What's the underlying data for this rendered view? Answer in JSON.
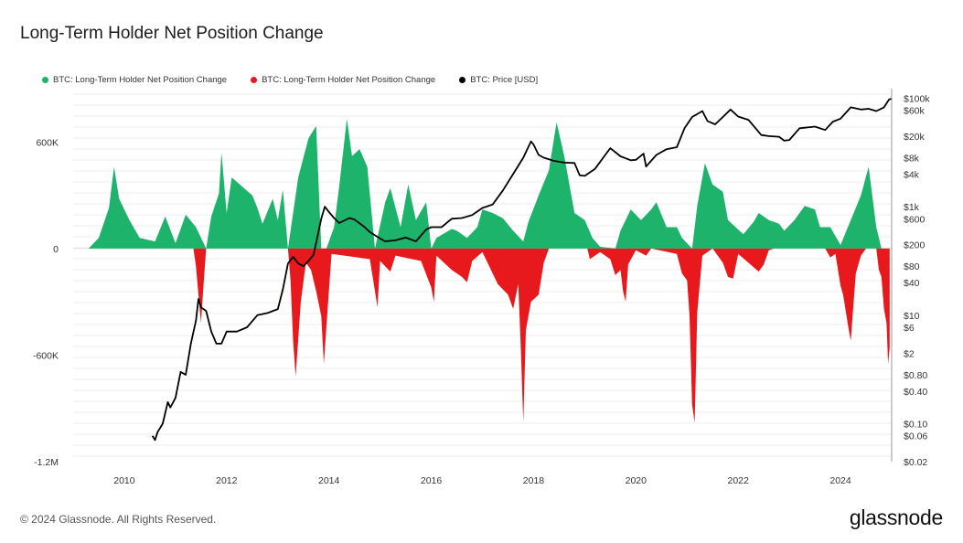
{
  "page": {
    "title": "Long-Term Holder Net Position Change",
    "footer": "© 2024 Glassnode. All Rights Reserved.",
    "brand": "glassnode"
  },
  "legend": [
    {
      "label": "BTC: Long-Term Holder Net Position Change",
      "color": "#1db36a"
    },
    {
      "label": "BTC: Long-Term Holder Net Position Change",
      "color": "#e8191c"
    },
    {
      "label": "BTC: Price [USD]",
      "color": "#000000"
    }
  ],
  "chart_data": {
    "type": "area",
    "title": "Long-Term Holder Net Position Change",
    "x_ticks": [
      "2010",
      "2012",
      "2014",
      "2016",
      "2018",
      "2020",
      "2022",
      "2024"
    ],
    "y_left_ticks": [
      "600K",
      "0",
      "-600K",
      "-1.2M"
    ],
    "y_right_ticks": [
      "$100k",
      "$60k",
      "$20k",
      "$8k",
      "$4k",
      "$1k",
      "$600",
      "$200",
      "$80",
      "$40",
      "$10",
      "$6",
      "$2",
      "$0.80",
      "$0.40",
      "$0.10",
      "$0.06",
      "$0.02"
    ],
    "y_left_range": [
      -1200000,
      900000
    ],
    "y_right_range_log": [
      0.02,
      150000
    ],
    "x_range": [
      2009.0,
      2025.0
    ],
    "series": [
      {
        "name": "BTC: Long-Term Holder Net Position Change",
        "color": "#1db36a",
        "points": [
          [
            2009.3,
            0
          ],
          [
            2009.5,
            60000
          ],
          [
            2009.7,
            230000
          ],
          [
            2009.8,
            460000
          ],
          [
            2009.9,
            280000
          ],
          [
            2010.1,
            160000
          ],
          [
            2010.3,
            60000
          ],
          [
            2010.6,
            40000
          ],
          [
            2010.8,
            180000
          ],
          [
            2011.0,
            30000
          ],
          [
            2011.2,
            190000
          ],
          [
            2011.4,
            120000
          ],
          [
            2011.6,
            0
          ],
          [
            2011.7,
            180000
          ],
          [
            2011.85,
            310000
          ],
          [
            2011.9,
            540000
          ],
          [
            2012.0,
            200000
          ],
          [
            2012.1,
            400000
          ],
          [
            2012.3,
            350000
          ],
          [
            2012.5,
            300000
          ],
          [
            2012.6,
            230000
          ],
          [
            2012.7,
            140000
          ],
          [
            2012.9,
            280000
          ],
          [
            2013.0,
            160000
          ],
          [
            2013.1,
            330000
          ],
          [
            2013.2,
            0
          ],
          [
            2013.3,
            200000
          ],
          [
            2013.4,
            400000
          ],
          [
            2013.6,
            620000
          ],
          [
            2013.75,
            690000
          ],
          [
            2013.85,
            0
          ],
          [
            2013.95,
            0
          ],
          [
            2014.1,
            120000
          ],
          [
            2014.2,
            350000
          ],
          [
            2014.35,
            730000
          ],
          [
            2014.45,
            520000
          ],
          [
            2014.6,
            560000
          ],
          [
            2014.75,
            460000
          ],
          [
            2014.9,
            0
          ],
          [
            2015.1,
            260000
          ],
          [
            2015.2,
            340000
          ],
          [
            2015.4,
            120000
          ],
          [
            2015.55,
            360000
          ],
          [
            2015.7,
            160000
          ],
          [
            2015.9,
            260000
          ],
          [
            2016.0,
            0
          ],
          [
            2016.1,
            60000
          ],
          [
            2016.4,
            110000
          ],
          [
            2016.5,
            100000
          ],
          [
            2016.7,
            60000
          ],
          [
            2016.9,
            120000
          ],
          [
            2017.0,
            220000
          ],
          [
            2017.2,
            200000
          ],
          [
            2017.4,
            170000
          ],
          [
            2017.6,
            100000
          ],
          [
            2017.8,
            40000
          ],
          [
            2017.9,
            150000
          ],
          [
            2018.1,
            300000
          ],
          [
            2018.3,
            440000
          ],
          [
            2018.45,
            710000
          ],
          [
            2018.6,
            520000
          ],
          [
            2018.8,
            200000
          ],
          [
            2019.0,
            160000
          ],
          [
            2019.15,
            60000
          ],
          [
            2019.3,
            10000
          ],
          [
            2019.6,
            0
          ],
          [
            2019.7,
            100000
          ],
          [
            2019.9,
            220000
          ],
          [
            2020.1,
            160000
          ],
          [
            2020.3,
            220000
          ],
          [
            2020.4,
            260000
          ],
          [
            2020.6,
            120000
          ],
          [
            2020.8,
            120000
          ],
          [
            2020.9,
            60000
          ],
          [
            2021.1,
            0
          ],
          [
            2021.2,
            240000
          ],
          [
            2021.35,
            480000
          ],
          [
            2021.5,
            360000
          ],
          [
            2021.7,
            320000
          ],
          [
            2021.8,
            160000
          ],
          [
            2022.1,
            80000
          ],
          [
            2022.3,
            150000
          ],
          [
            2022.4,
            200000
          ],
          [
            2022.6,
            160000
          ],
          [
            2022.8,
            140000
          ],
          [
            2022.9,
            100000
          ],
          [
            2023.1,
            160000
          ],
          [
            2023.3,
            240000
          ],
          [
            2023.5,
            220000
          ],
          [
            2023.6,
            120000
          ],
          [
            2023.8,
            120000
          ],
          [
            2024.0,
            20000
          ],
          [
            2024.2,
            160000
          ],
          [
            2024.4,
            300000
          ],
          [
            2024.55,
            460000
          ],
          [
            2024.7,
            120000
          ],
          [
            2024.8,
            0
          ]
        ]
      },
      {
        "name": "BTC: Long-Term Holder Net Position Change",
        "color": "#e8191c",
        "points": [
          [
            2011.35,
            0
          ],
          [
            2011.4,
            -100000
          ],
          [
            2011.45,
            -260000
          ],
          [
            2011.5,
            -420000
          ],
          [
            2011.55,
            -200000
          ],
          [
            2011.6,
            0
          ],
          [
            2013.2,
            0
          ],
          [
            2013.25,
            -180000
          ],
          [
            2013.3,
            -520000
          ],
          [
            2013.35,
            -720000
          ],
          [
            2013.45,
            -300000
          ],
          [
            2013.55,
            -80000
          ],
          [
            2013.65,
            -120000
          ],
          [
            2013.75,
            -240000
          ],
          [
            2013.85,
            -380000
          ],
          [
            2013.9,
            -650000
          ],
          [
            2013.95,
            -440000
          ],
          [
            2014.05,
            -30000
          ],
          [
            2014.8,
            -60000
          ],
          [
            2014.9,
            -240000
          ],
          [
            2014.95,
            -330000
          ],
          [
            2015.0,
            -70000
          ],
          [
            2015.2,
            -130000
          ],
          [
            2015.3,
            -40000
          ],
          [
            2015.8,
            -70000
          ],
          [
            2016.0,
            -220000
          ],
          [
            2016.05,
            -300000
          ],
          [
            2016.1,
            -40000
          ],
          [
            2016.4,
            -120000
          ],
          [
            2016.6,
            -160000
          ],
          [
            2016.7,
            -190000
          ],
          [
            2016.8,
            -70000
          ],
          [
            2017.0,
            -20000
          ],
          [
            2017.3,
            -200000
          ],
          [
            2017.5,
            -260000
          ],
          [
            2017.6,
            -340000
          ],
          [
            2017.7,
            -200000
          ],
          [
            2017.75,
            -560000
          ],
          [
            2017.8,
            -980000
          ],
          [
            2017.85,
            -460000
          ],
          [
            2017.95,
            -300000
          ],
          [
            2018.1,
            -260000
          ],
          [
            2018.2,
            -80000
          ],
          [
            2018.3,
            0
          ],
          [
            2019.05,
            0
          ],
          [
            2019.1,
            -60000
          ],
          [
            2019.3,
            -20000
          ],
          [
            2019.5,
            -60000
          ],
          [
            2019.6,
            -150000
          ],
          [
            2019.7,
            -120000
          ],
          [
            2019.75,
            -240000
          ],
          [
            2019.8,
            -300000
          ],
          [
            2019.85,
            -90000
          ],
          [
            2020.0,
            -10000
          ],
          [
            2020.2,
            -40000
          ],
          [
            2020.3,
            0
          ],
          [
            2020.8,
            -30000
          ],
          [
            2020.9,
            -140000
          ],
          [
            2021.0,
            -180000
          ],
          [
            2021.05,
            -380000
          ],
          [
            2021.1,
            -880000
          ],
          [
            2021.15,
            -980000
          ],
          [
            2021.2,
            -360000
          ],
          [
            2021.3,
            -40000
          ],
          [
            2021.5,
            0
          ],
          [
            2021.7,
            -80000
          ],
          [
            2021.8,
            -160000
          ],
          [
            2021.9,
            -170000
          ],
          [
            2022.0,
            -30000
          ],
          [
            2022.4,
            -130000
          ],
          [
            2022.5,
            -90000
          ],
          [
            2022.6,
            -10000
          ],
          [
            2022.7,
            0
          ],
          [
            2023.2,
            0
          ],
          [
            2023.7,
            0
          ],
          [
            2023.8,
            -50000
          ],
          [
            2023.9,
            -30000
          ],
          [
            2024.0,
            -210000
          ],
          [
            2024.05,
            -260000
          ],
          [
            2024.15,
            -440000
          ],
          [
            2024.2,
            -520000
          ],
          [
            2024.25,
            -330000
          ],
          [
            2024.3,
            -140000
          ],
          [
            2024.4,
            -40000
          ],
          [
            2024.5,
            0
          ],
          [
            2024.7,
            0
          ],
          [
            2024.75,
            -120000
          ],
          [
            2024.8,
            -160000
          ],
          [
            2024.85,
            -340000
          ],
          [
            2024.9,
            -420000
          ],
          [
            2024.93,
            -650000
          ],
          [
            2024.96,
            -560000
          ]
        ]
      },
      {
        "name": "BTC: Price [USD]",
        "color": "#000000",
        "points": [
          [
            2010.55,
            0.06
          ],
          [
            2010.6,
            0.05
          ],
          [
            2010.65,
            0.07
          ],
          [
            2010.75,
            0.1
          ],
          [
            2010.85,
            0.25
          ],
          [
            2010.9,
            0.2
          ],
          [
            2011.0,
            0.3
          ],
          [
            2011.1,
            0.9
          ],
          [
            2011.2,
            0.8
          ],
          [
            2011.3,
            3
          ],
          [
            2011.4,
            8
          ],
          [
            2011.45,
            20
          ],
          [
            2011.5,
            14
          ],
          [
            2011.6,
            12
          ],
          [
            2011.7,
            5
          ],
          [
            2011.8,
            3
          ],
          [
            2011.9,
            3
          ],
          [
            2012.0,
            5
          ],
          [
            2012.2,
            5
          ],
          [
            2012.4,
            6
          ],
          [
            2012.6,
            10
          ],
          [
            2012.8,
            11
          ],
          [
            2013.0,
            13
          ],
          [
            2013.1,
            30
          ],
          [
            2013.2,
            90
          ],
          [
            2013.3,
            120
          ],
          [
            2013.4,
            90
          ],
          [
            2013.5,
            80
          ],
          [
            2013.6,
            100
          ],
          [
            2013.7,
            130
          ],
          [
            2013.85,
            600
          ],
          [
            2013.92,
            1000
          ],
          [
            2014.0,
            800
          ],
          [
            2014.1,
            620
          ],
          [
            2014.2,
            500
          ],
          [
            2014.4,
            620
          ],
          [
            2014.5,
            580
          ],
          [
            2014.7,
            420
          ],
          [
            2014.8,
            340
          ],
          [
            2015.0,
            260
          ],
          [
            2015.1,
            230
          ],
          [
            2015.3,
            240
          ],
          [
            2015.5,
            270
          ],
          [
            2015.7,
            230
          ],
          [
            2015.9,
            380
          ],
          [
            2016.0,
            420
          ],
          [
            2016.2,
            420
          ],
          [
            2016.4,
            600
          ],
          [
            2016.6,
            620
          ],
          [
            2016.8,
            700
          ],
          [
            2017.0,
            950
          ],
          [
            2017.2,
            1100
          ],
          [
            2017.4,
            2000
          ],
          [
            2017.6,
            4000
          ],
          [
            2017.8,
            8000
          ],
          [
            2017.95,
            16000
          ],
          [
            2018.0,
            14000
          ],
          [
            2018.1,
            9000
          ],
          [
            2018.2,
            8000
          ],
          [
            2018.4,
            7000
          ],
          [
            2018.6,
            6500
          ],
          [
            2018.8,
            6400
          ],
          [
            2018.9,
            3800
          ],
          [
            2019.0,
            3700
          ],
          [
            2019.2,
            5000
          ],
          [
            2019.4,
            9000
          ],
          [
            2019.5,
            12000
          ],
          [
            2019.7,
            8500
          ],
          [
            2019.9,
            7200
          ],
          [
            2020.0,
            7300
          ],
          [
            2020.15,
            9500
          ],
          [
            2020.2,
            5500
          ],
          [
            2020.4,
            9000
          ],
          [
            2020.6,
            11500
          ],
          [
            2020.8,
            12500
          ],
          [
            2020.95,
            28000
          ],
          [
            2021.1,
            45000
          ],
          [
            2021.3,
            58000
          ],
          [
            2021.4,
            38000
          ],
          [
            2021.55,
            33000
          ],
          [
            2021.7,
            45000
          ],
          [
            2021.85,
            62000
          ],
          [
            2022.0,
            46000
          ],
          [
            2022.2,
            40000
          ],
          [
            2022.45,
            21000
          ],
          [
            2022.6,
            20000
          ],
          [
            2022.8,
            19500
          ],
          [
            2022.9,
            16500
          ],
          [
            2023.0,
            17000
          ],
          [
            2023.2,
            28000
          ],
          [
            2023.5,
            30000
          ],
          [
            2023.7,
            26000
          ],
          [
            2023.85,
            37000
          ],
          [
            2024.0,
            42000
          ],
          [
            2024.2,
            68000
          ],
          [
            2024.4,
            62000
          ],
          [
            2024.55,
            64000
          ],
          [
            2024.7,
            58000
          ],
          [
            2024.85,
            68000
          ],
          [
            2024.95,
            95000
          ],
          [
            2025.0,
            98000
          ]
        ]
      }
    ]
  }
}
